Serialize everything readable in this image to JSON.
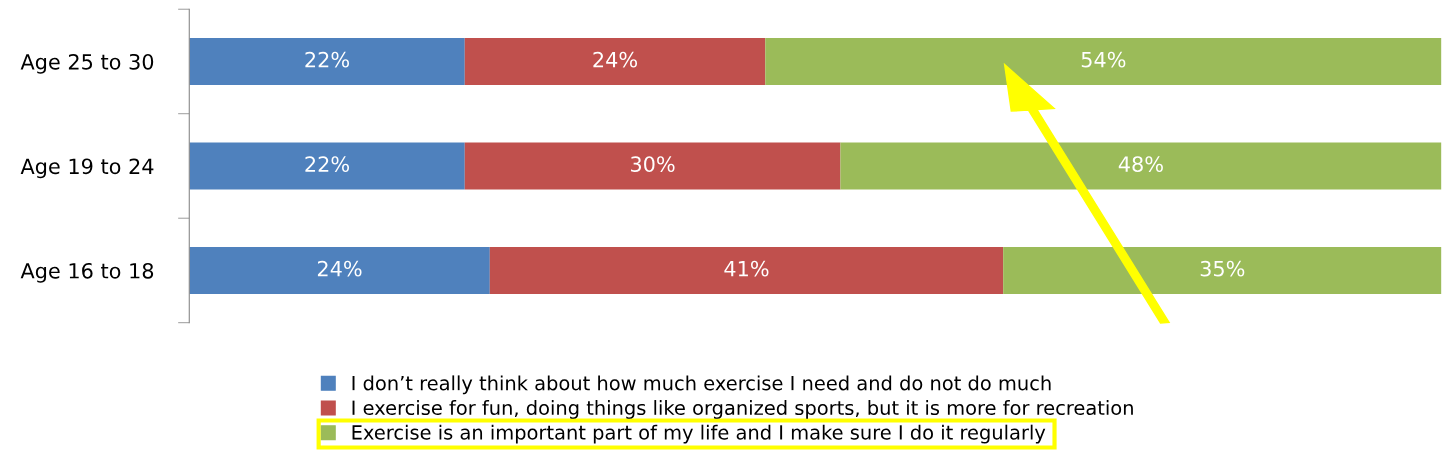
{
  "chart_data": {
    "type": "bar",
    "orientation": "horizontal",
    "stacked": true,
    "categories": [
      "Age 25 to 30",
      "Age 19 to 24",
      "Age 16 to 18"
    ],
    "xlim": [
      0,
      100
    ],
    "tick_labels": "y",
    "series": [
      {
        "name": "I don’t really think about how much exercise I need and do not do much",
        "color": "#4f81bd",
        "values": [
          22,
          22,
          24
        ],
        "value_labels": [
          "22%",
          "22%",
          "24%"
        ]
      },
      {
        "name": "I exercise for fun, doing things like organized sports, but it is more for recreation",
        "color": "#c0504d",
        "values": [
          24,
          30,
          41
        ],
        "value_labels": [
          "24%",
          "30%",
          "41%"
        ]
      },
      {
        "name": "Exercise is an important part of my life and I make sure I do it regularly",
        "color": "#9bbb59",
        "values": [
          54,
          48,
          35
        ],
        "value_labels": [
          "54%",
          "48%",
          "35%"
        ]
      }
    ],
    "legend": "bottom",
    "grid": false
  }
}
